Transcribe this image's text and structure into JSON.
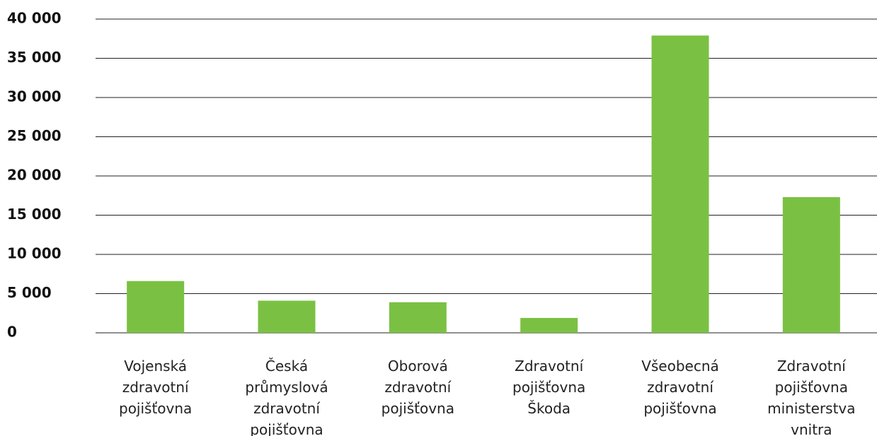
{
  "chart_data": {
    "type": "bar",
    "categories": [
      "Vojenská zdravotní pojišťovna",
      "Česká průmyslová zdravotní pojišťovna",
      "Oborová zdravotní pojišťovna",
      "Zdravotní pojišťovna Škoda",
      "Všeobecná zdravotní pojišťovna",
      "Zdravotní pojišťovna ministerstva vnitra"
    ],
    "values": [
      6600,
      4100,
      3900,
      1900,
      37900,
      17300
    ],
    "color": "#7ac143",
    "ylim": [
      0,
      40000
    ],
    "yticks": [
      0,
      {
        "value": 5000,
        "label": "5 000"
      },
      {
        "value": 10000,
        "label": "10 000"
      },
      {
        "value": 15000,
        "label": "15 000"
      },
      {
        "value": 20000,
        "label": "20 000"
      },
      {
        "value": 25000,
        "label": "25 000"
      },
      {
        "value": 30000,
        "label": "30 000"
      },
      {
        "value": 35000,
        "label": "35 000"
      },
      {
        "value": 40000,
        "label": "40 000"
      }
    ],
    "grid": true
  }
}
